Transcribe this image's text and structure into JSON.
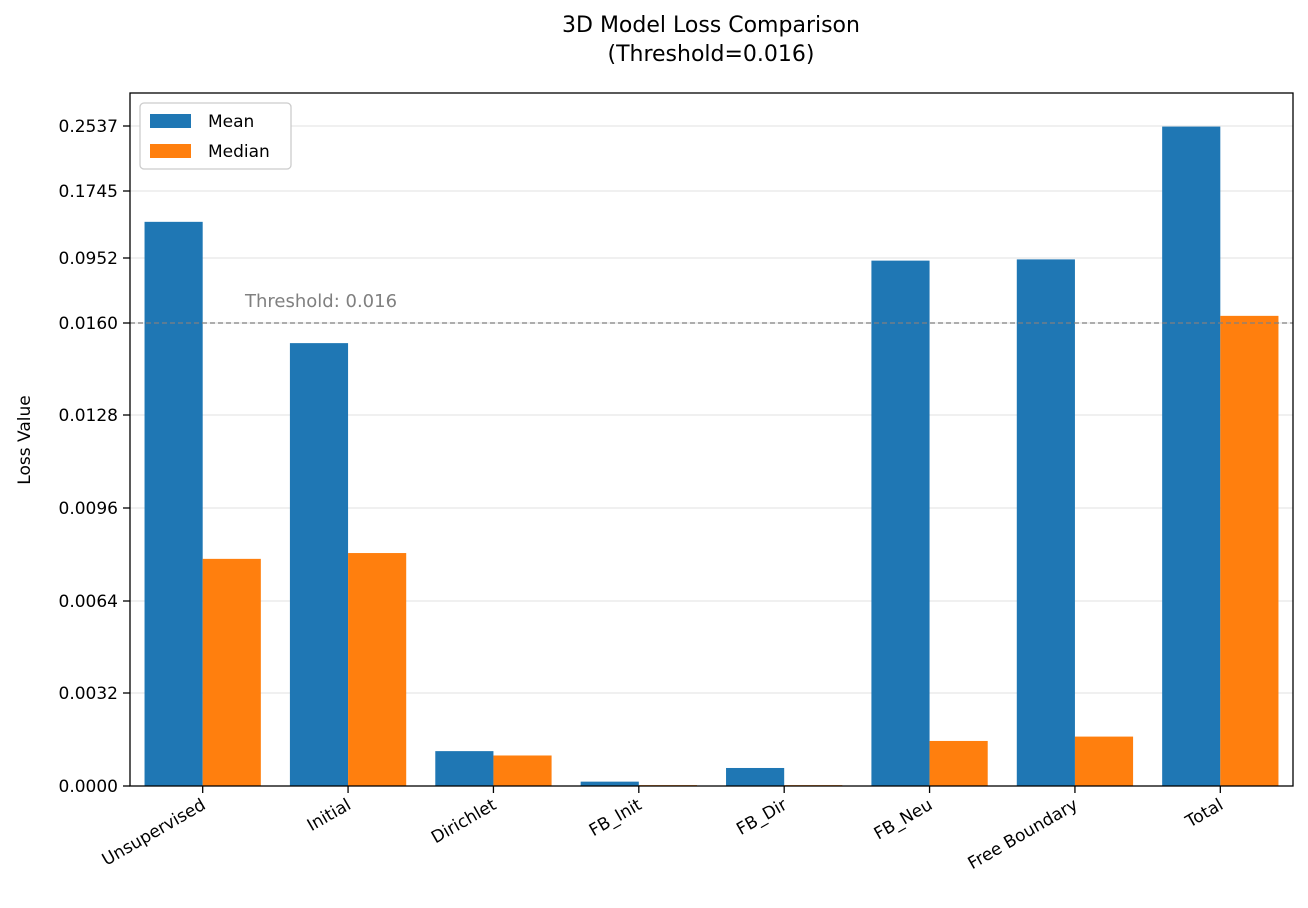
{
  "chart_data": {
    "type": "bar",
    "title": "3D Model Loss Comparison",
    "subtitle": "(Threshold=0.016)",
    "ylabel": "Loss Value",
    "xlabel": "",
    "categories": [
      "Unsupervised",
      "Initial",
      "Dirichlet",
      "FB_Init",
      "FB_Dir",
      "FB_Neu",
      "Free Boundary",
      "Total"
    ],
    "series": [
      {
        "name": "Mean",
        "color": "#1f77b4",
        "values": [
          0.138,
          0.0153,
          0.0012,
          0.00015,
          0.00062,
          0.092,
          0.0935,
          0.253
        ]
      },
      {
        "name": "Median",
        "color": "#ff7f0e",
        "values": [
          0.00785,
          0.00805,
          0.00105,
          3e-05,
          3e-05,
          0.00155,
          0.0017,
          0.0247
        ]
      }
    ],
    "y_scale": "linear below 0.016, stretched above 0.016",
    "y_ticks": [
      0.0,
      0.0032,
      0.0064,
      0.0096,
      0.0128,
      0.016,
      0.0952,
      0.1745,
      0.2537
    ],
    "y_tick_labels": [
      "0.0000",
      "0.0032",
      "0.0064",
      "0.0096",
      "0.0128",
      "0.0160",
      "0.0952",
      "0.1745",
      "0.2537"
    ],
    "ylim": [
      0,
      0.28
    ],
    "threshold": {
      "value": 0.016,
      "label": "Threshold: 0.016",
      "color": "#808080"
    },
    "grid": "horizontal",
    "legend": "top-left"
  }
}
